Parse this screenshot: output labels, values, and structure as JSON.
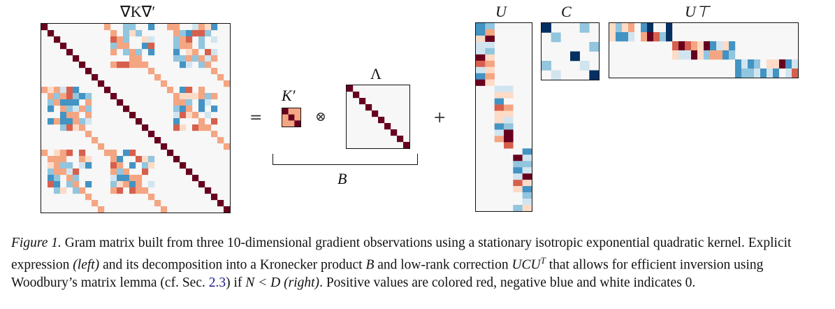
{
  "figure": {
    "labels": {
      "grad_k_grad": "∇K∇′",
      "k_prime": "K′",
      "lambda": "Λ",
      "b": "B",
      "u": "U",
      "c": "C",
      "u_t": "U⊤"
    },
    "operators": {
      "equals": "=",
      "kron": "⊗",
      "plus": "+"
    },
    "colors": {
      "positive_strong": "#67001f",
      "positive_mid": "#d6604d",
      "positive_light": "#f4a582",
      "positive_faint": "#fddbc7",
      "negative_faint": "#d1e5f0",
      "negative_light": "#92c5de",
      "negative_mid": "#4393c3",
      "negative_strong": "#053061",
      "zero": "#f7f7f7"
    }
  },
  "caption": {
    "figure_label": "Figure 1.",
    "text_1": " Gram matrix built from three 10-dimensional gradient observations using a stationary isotropic exponential quadratic kernel. Explicit expression ",
    "left": "(left)",
    "text_2": " and its decomposition into a Kronecker product ",
    "b": "B",
    "text_3": " and low-rank correction ",
    "ucut": "UCU",
    "ucut_sup": "T",
    "text_4": " that allows for efficient inversion using Woodbury’s matrix lemma (cf. Sec. ",
    "sec_ref": "2.3",
    "text_5": ") if ",
    "cond": "N < D",
    "text_6": " ",
    "right": "(right)",
    "text_7": ". Positive values are colored red, negative blue and white indicates 0."
  }
}
